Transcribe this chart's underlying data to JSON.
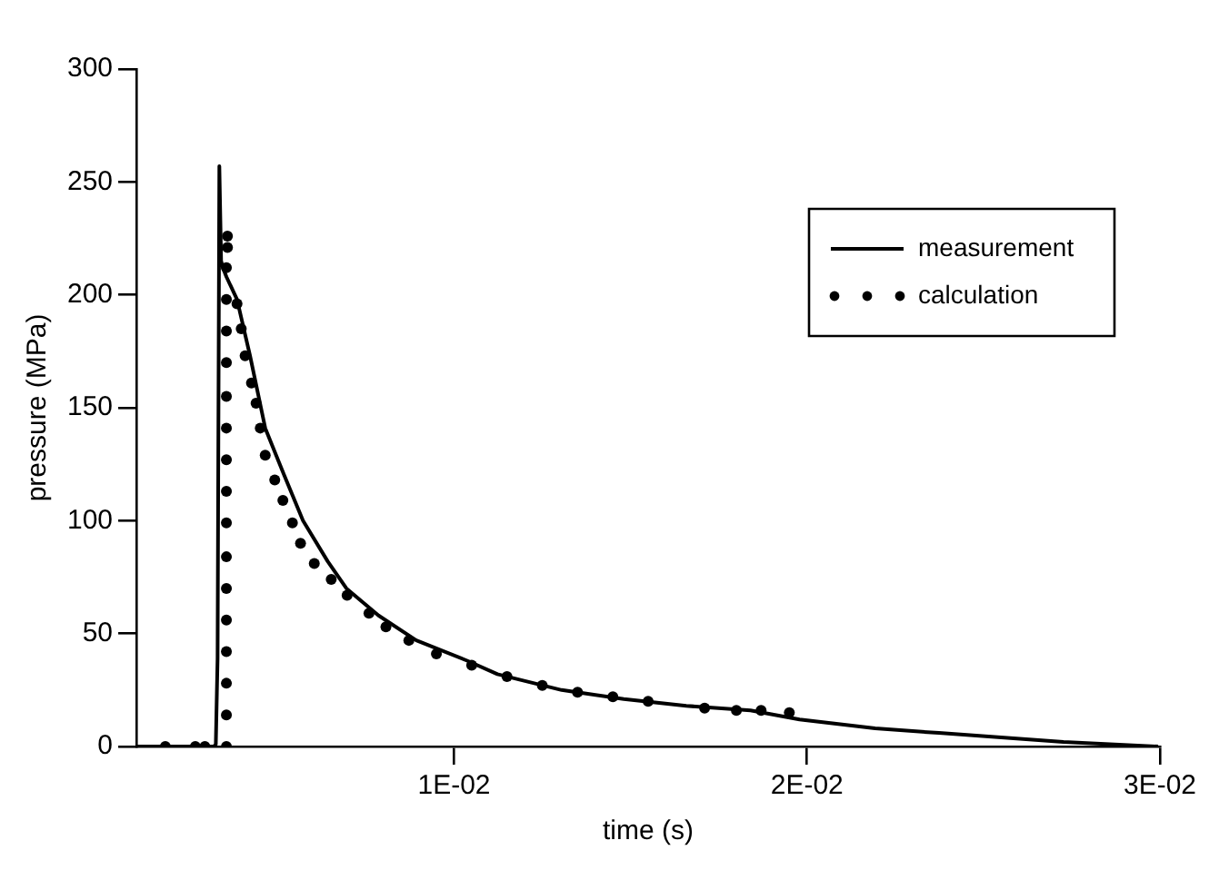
{
  "chart_data": {
    "type": "line",
    "xlabel": "time (s)",
    "ylabel": "pressure (MPa)",
    "xlim": [
      0.001,
      0.03
    ],
    "ylim": [
      0,
      300
    ],
    "xticks": [
      {
        "value": 0.01,
        "label": "1E-02"
      },
      {
        "value": 0.02,
        "label": "2E-02"
      },
      {
        "value": 0.03,
        "label": "3E-02"
      }
    ],
    "yticks": [
      0,
      50,
      100,
      150,
      200,
      250,
      300
    ],
    "grid": false,
    "legend": "top right",
    "series": [
      {
        "name": "measurement",
        "color": "#000000",
        "marker": "none",
        "line_style": "solid",
        "x": [
          0.001,
          0.0015,
          0.002,
          0.0025,
          0.003,
          0.0032,
          0.00325,
          0.0033,
          0.00335,
          0.0034,
          0.00345,
          0.00355,
          0.00385,
          0.00422,
          0.00465,
          0.00519,
          0.00572,
          0.00642,
          0.00695,
          0.00786,
          0.00893,
          0.01037,
          0.01123,
          0.01305,
          0.01481,
          0.01658,
          0.0184,
          0.01979,
          0.02193,
          0.02374,
          0.0255,
          0.02727,
          0.02995
        ],
        "values": [
          0,
          0,
          0,
          0,
          0,
          0,
          1,
          39,
          257,
          215,
          212,
          208,
          198,
          173,
          141,
          120,
          100,
          82,
          70,
          58,
          47,
          38,
          32,
          25,
          21,
          18,
          16,
          12,
          8,
          6,
          4,
          2,
          0
        ]
      },
      {
        "name": "calculation",
        "type": "scatter",
        "color": "#000000",
        "marker": "circle",
        "x": [
          0.00182,
          0.00267,
          0.00294,
          0.00355,
          0.00355,
          0.00355,
          0.00355,
          0.00355,
          0.00355,
          0.00355,
          0.00355,
          0.00355,
          0.00355,
          0.00355,
          0.00355,
          0.00355,
          0.00355,
          0.00355,
          0.00355,
          0.00358,
          0.00358,
          0.00385,
          0.00397,
          0.00408,
          0.00426,
          0.00439,
          0.00451,
          0.00465,
          0.00492,
          0.00515,
          0.00542,
          0.00565,
          0.00604,
          0.00652,
          0.00697,
          0.00759,
          0.00807,
          0.00872,
          0.0095,
          0.0105,
          0.0115,
          0.0125,
          0.0135,
          0.0145,
          0.0155,
          0.0171,
          0.018,
          0.0187,
          0.0195
        ],
        "values": [
          0,
          0,
          0,
          0,
          14,
          28,
          42,
          56,
          70,
          84,
          99,
          113,
          127,
          141,
          155,
          170,
          184,
          198,
          212,
          221,
          226,
          196,
          185,
          173,
          161,
          152,
          141,
          129,
          118,
          109,
          99,
          90,
          81,
          74,
          67,
          59,
          53,
          47,
          41,
          36,
          31,
          27,
          24,
          22,
          20,
          17,
          16,
          16,
          15
        ]
      }
    ]
  }
}
